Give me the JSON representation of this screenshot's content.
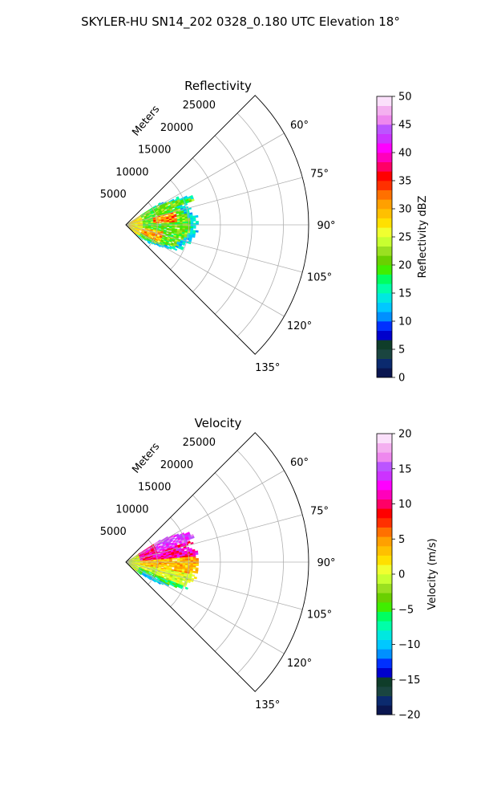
{
  "figure": {
    "title": "SKYLER-HU  SN14_202  0328_0.180 UTC Elevation 18°"
  },
  "chart_data": [
    {
      "type": "heatmap",
      "subtype": "polar-sector",
      "title": "Reflectivity",
      "radial_axis_label": "Meters",
      "radial_ticks": [
        5000,
        10000,
        15000,
        20000,
        25000
      ],
      "radial_tick_labels": [
        "5000",
        "10000",
        "15000",
        "20000",
        "25000"
      ],
      "radial_range": [
        0,
        29000
      ],
      "azimuth_range_deg": [
        45,
        135
      ],
      "azimuth_ticks_deg": [
        60,
        75,
        90,
        105,
        120,
        135
      ],
      "azimuth_tick_labels": [
        "60°",
        "75°",
        "90°",
        "105°",
        "120°",
        "135°"
      ],
      "grid": true,
      "colorbar": {
        "label": "Reflectivity dBZ",
        "range": [
          0,
          50
        ],
        "ticks": [
          0,
          5,
          10,
          15,
          20,
          25,
          30,
          35,
          40,
          45,
          50
        ],
        "tick_labels": [
          "0",
          "5",
          "10",
          "15",
          "20",
          "25",
          "30",
          "35",
          "40",
          "45",
          "50"
        ],
        "levels": 30,
        "colors": [
          "#0a1650",
          "#0b2a6e",
          "#1a4540",
          "#0f3d2a",
          "#0000cc",
          "#0030ff",
          "#0090ff",
          "#00c8ff",
          "#00e8e0",
          "#00ffa8",
          "#00ff60",
          "#40ee00",
          "#6ad000",
          "#9ae020",
          "#c8ff30",
          "#f0ff30",
          "#ffe000",
          "#ffc000",
          "#ffa000",
          "#ff7000",
          "#ff3000",
          "#ff0000",
          "#ff0066",
          "#ff00bb",
          "#ff00ff",
          "#cc33ff",
          "#bb55ff",
          "#ee88ee",
          "#f4b0f0",
          "#fbe0fb"
        ]
      },
      "data_extent": {
        "azimuth_deg": [
          57,
          131
        ],
        "range_m": [
          0,
          11500
        ]
      },
      "dominant_values_dbz": [
        14,
        30
      ]
    },
    {
      "type": "heatmap",
      "subtype": "polar-sector",
      "title": "Velocity",
      "radial_axis_label": "Meters",
      "radial_ticks": [
        5000,
        10000,
        15000,
        20000,
        25000
      ],
      "radial_tick_labels": [
        "5000",
        "10000",
        "15000",
        "20000",
        "25000"
      ],
      "radial_range": [
        0,
        29000
      ],
      "azimuth_range_deg": [
        45,
        135
      ],
      "azimuth_ticks_deg": [
        60,
        75,
        90,
        105,
        120,
        135
      ],
      "azimuth_tick_labels": [
        "60°",
        "75°",
        "90°",
        "105°",
        "120°",
        "135°"
      ],
      "grid": true,
      "colorbar": {
        "label": "Velocity (m/s)",
        "range": [
          -20,
          20
        ],
        "ticks": [
          -20,
          -15,
          -10,
          -5,
          0,
          5,
          10,
          15,
          20
        ],
        "tick_labels": [
          "−20",
          "−15",
          "−10",
          "−5",
          "0",
          "5",
          "10",
          "15",
          "20"
        ],
        "levels": 30,
        "colors": [
          "#0a1650",
          "#0b2a6e",
          "#1a4540",
          "#0f3d2a",
          "#0000cc",
          "#0030ff",
          "#0090ff",
          "#00c8ff",
          "#00e8e0",
          "#00ffa8",
          "#00ff60",
          "#40ee00",
          "#6ad000",
          "#9ae020",
          "#c8ff30",
          "#f0ff30",
          "#ffe000",
          "#ffc000",
          "#ffa000",
          "#ff7000",
          "#ff3000",
          "#ff0000",
          "#ff0066",
          "#ff00bb",
          "#ff00ff",
          "#cc33ff",
          "#bb55ff",
          "#ee88ee",
          "#f4b0f0",
          "#fbe0fb"
        ]
      },
      "data_extent": {
        "azimuth_deg": [
          57,
          131
        ],
        "range_m": [
          0,
          11500
        ]
      },
      "dominant_values_ms": [
        -8,
        10
      ]
    }
  ]
}
